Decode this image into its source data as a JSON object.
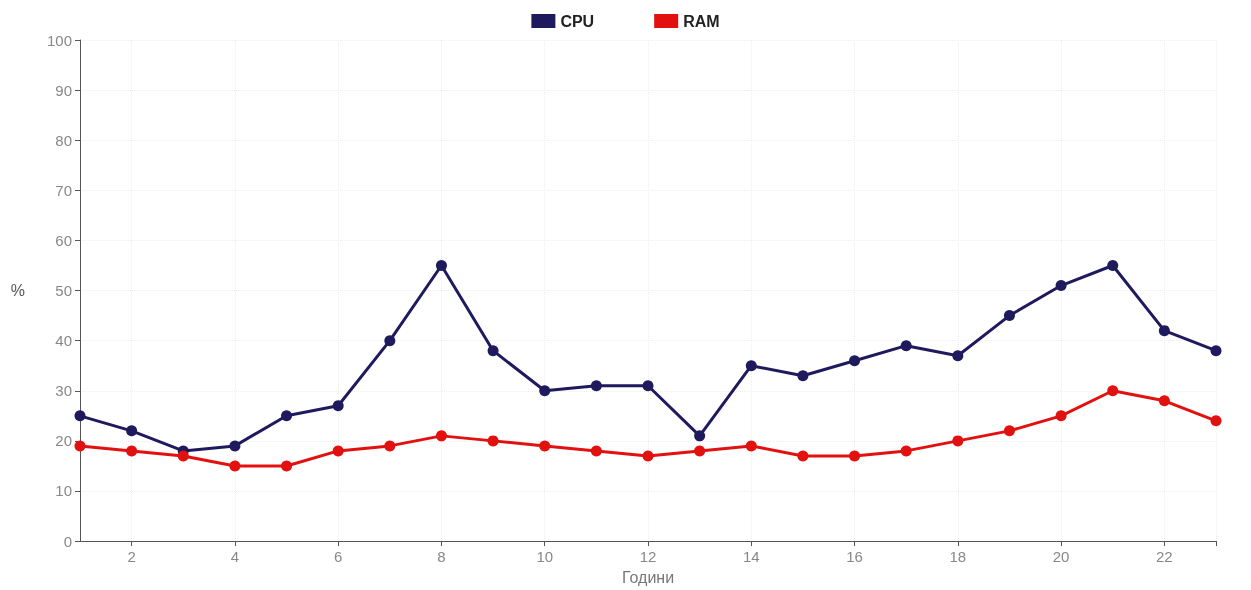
{
  "chart_data": {
    "type": "line",
    "xlabel": "Години",
    "ylabel": "%",
    "x": [
      1,
      2,
      3,
      4,
      5,
      6,
      7,
      8,
      9,
      10,
      11,
      12,
      13,
      14,
      15,
      16,
      17,
      18,
      19,
      20,
      21,
      22,
      23
    ],
    "series": [
      {
        "name": "CPU",
        "color": "#1f1a5e",
        "values": [
          25,
          22,
          18,
          19,
          25,
          27,
          40,
          55,
          38,
          30,
          31,
          31,
          21,
          35,
          33,
          36,
          39,
          37,
          45,
          51,
          55,
          42,
          38
        ]
      },
      {
        "name": "RAM",
        "color": "#e31010",
        "values": [
          19,
          18,
          17,
          15,
          15,
          18,
          19,
          21,
          20,
          19,
          18,
          17,
          18,
          19,
          17,
          17,
          18,
          20,
          22,
          25,
          30,
          28,
          24
        ]
      }
    ],
    "xlim": [
      1,
      23
    ],
    "xticks": [
      2,
      4,
      6,
      8,
      10,
      12,
      14,
      16,
      18,
      20,
      22,
      {
        "value": 23,
        "label": null
      }
    ],
    "ylim": [
      0,
      100
    ],
    "yticks": [
      0,
      10,
      20,
      30,
      40,
      50,
      60,
      70,
      80,
      90,
      100
    ],
    "grid": true,
    "legend": "top",
    "marker": "circle",
    "line_style": "solid"
  }
}
